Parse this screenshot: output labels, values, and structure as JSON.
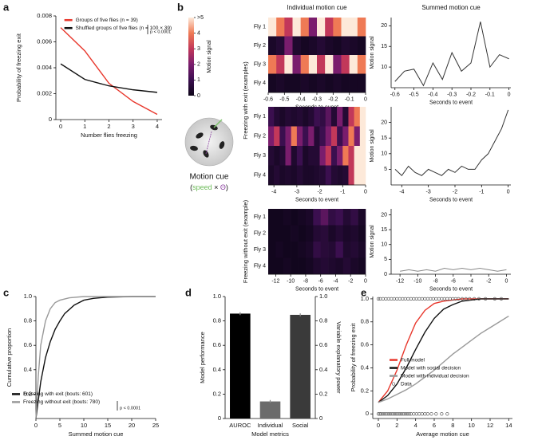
{
  "chart_data": [
    {
      "type": "line",
      "panel": "a",
      "xlabel": "Number flies freezing",
      "ylabel": "Probability of freezing exit",
      "x": [
        0,
        1,
        2,
        3,
        4
      ],
      "xlim": [
        -0.2,
        4.2
      ],
      "xticks": [
        0,
        1,
        2,
        3,
        4
      ],
      "ylim": [
        0,
        0.008
      ],
      "yticks": [
        0,
        0.002,
        0.004,
        0.006,
        0.008
      ],
      "series": [
        {
          "name": "Groups of five flies (n = 39)",
          "color": "#e8372c",
          "values": [
            0.0071,
            0.0053,
            0.0028,
            0.0014,
            0.0004
          ]
        },
        {
          "name": "Shuffled groups of five flies (n = 100 × 39)",
          "color": "#111111",
          "values": [
            0.0043,
            0.0031,
            0.0026,
            0.0023,
            0.0021
          ]
        }
      ],
      "legend": "upper right",
      "annotation": "p < 0.0001"
    },
    {
      "type": "heatmap",
      "title": "Individual motion cue",
      "xlabel": "Seconds to event",
      "xlim": [
        -0.6,
        0
      ],
      "xticks": [
        -0.6,
        -0.5,
        -0.4,
        -0.3,
        -0.2,
        -0.1,
        0
      ],
      "series": [
        {
          "name": "Fly 1",
          "values": [
            5,
            4,
            3,
            5,
            4,
            2,
            5,
            3,
            4,
            5,
            5,
            4
          ]
        },
        {
          "name": "Fly 2",
          "values": [
            0.3,
            0.5,
            2,
            0.4,
            0.2,
            0.3,
            0.5,
            0.3,
            0.2,
            0.4,
            0.3,
            0.2
          ]
        },
        {
          "name": "Fly 3",
          "values": [
            4,
            3,
            5,
            2,
            4,
            5,
            3,
            5,
            2,
            3,
            5,
            4
          ]
        },
        {
          "name": "Fly 4",
          "values": [
            0.2,
            0.3,
            0.2,
            0.2,
            0.3,
            0.2,
            0.3,
            0.2,
            0.3,
            0.2,
            0.2,
            0.2
          ]
        }
      ]
    },
    {
      "type": "line",
      "title": "Summed motion cue",
      "xlabel": "Seconds to event",
      "ylabel": "Motion signal",
      "x": [
        -0.6,
        -0.55,
        -0.5,
        -0.45,
        -0.4,
        -0.35,
        -0.3,
        -0.25,
        -0.2,
        -0.15,
        -0.1,
        -0.05,
        0
      ],
      "xlim": [
        -0.62,
        0.01
      ],
      "xticks": [
        -0.6,
        -0.5,
        -0.4,
        -0.3,
        -0.2,
        -0.1,
        0
      ],
      "ylim": [
        5,
        22
      ],
      "yticks": [
        10,
        15,
        20
      ],
      "series": [
        {
          "color": "#333333",
          "values": [
            6.5,
            9,
            9.5,
            5.5,
            11,
            7,
            13.5,
            9,
            11,
            21,
            10,
            13,
            12
          ]
        }
      ]
    },
    {
      "type": "heatmap",
      "xlabel": "Seconds to event",
      "xlim": [
        -4.25,
        0
      ],
      "xticks": [
        -4,
        -3,
        -2,
        -1,
        0
      ],
      "series": [
        {
          "name": "Fly 1",
          "values": [
            1,
            0.5,
            0.3,
            0.5,
            0.4,
            0.5,
            0.3,
            0.5,
            1,
            0.8,
            1.5,
            0.5,
            2,
            0.5,
            3,
            4,
            5
          ]
        },
        {
          "name": "Fly 2",
          "values": [
            2,
            3,
            1,
            2,
            4,
            2,
            1,
            2,
            0.5,
            1,
            2,
            3,
            1,
            2,
            4,
            2,
            5
          ]
        },
        {
          "name": "Fly 3",
          "values": [
            0.5,
            0.3,
            0.5,
            2,
            0.4,
            1,
            0.3,
            0.5,
            0.5,
            2,
            3,
            1,
            2,
            4,
            3,
            5,
            5
          ]
        },
        {
          "name": "Fly 4",
          "values": [
            0.3,
            0.5,
            0.3,
            0.4,
            0.3,
            0.5,
            0.3,
            0.3,
            0.4,
            0.5,
            1,
            0.5,
            0.4,
            0.5,
            3,
            5,
            5
          ]
        }
      ]
    },
    {
      "type": "line",
      "xlabel": "Seconds to event",
      "ylabel": "Motion signal",
      "x": [
        -4.25,
        -4,
        -3.75,
        -3.5,
        -3.25,
        -3,
        -2.75,
        -2.5,
        -2.25,
        -2,
        -1.75,
        -1.5,
        -1.25,
        -1,
        -0.75,
        -0.5,
        -0.25,
        0
      ],
      "xlim": [
        -4.4,
        0.1
      ],
      "xticks": [
        -4,
        -3,
        -2,
        -1,
        0
      ],
      "ylim": [
        0,
        25
      ],
      "yticks": [
        5,
        10,
        15,
        20
      ],
      "series": [
        {
          "color": "#333333",
          "values": [
            5,
            3,
            6,
            4,
            3,
            5,
            4,
            3,
            5,
            4,
            6,
            5,
            5,
            8,
            10,
            14,
            18,
            24
          ]
        }
      ]
    },
    {
      "type": "heatmap",
      "xlabel": "Seconds to event",
      "xlim": [
        -13,
        0
      ],
      "xticks": [
        -12,
        -10,
        -8,
        -6,
        -4,
        -2,
        0
      ],
      "series": [
        {
          "name": "Fly 1",
          "values": [
            0.1,
            0.1,
            0.2,
            0.1,
            0.2,
            0.3,
            1,
            1.5,
            0.8,
            1,
            0.5,
            0.8,
            0.3
          ]
        },
        {
          "name": "Fly 2",
          "values": [
            0.1,
            0.1,
            0.1,
            0.2,
            0.1,
            0.2,
            0.5,
            0.6,
            0.3,
            0.5,
            0.3,
            0.4,
            0.2
          ]
        },
        {
          "name": "Fly 3",
          "values": [
            0.1,
            0.2,
            0.1,
            0.1,
            0.2,
            0.3,
            0.8,
            0.6,
            0.5,
            1,
            0.4,
            0.5,
            0.3
          ]
        },
        {
          "name": "Fly 4",
          "values": [
            0.1,
            0.1,
            0.2,
            0.1,
            0.1,
            0.2,
            0.4,
            0.5,
            0.4,
            0.3,
            0.5,
            0.3,
            0.2
          ]
        }
      ]
    },
    {
      "type": "line",
      "xlabel": "Seconds to event",
      "ylabel": "Motion signal",
      "x": [
        -12,
        -11,
        -10,
        -9,
        -8,
        -7,
        -6,
        -5,
        -4,
        -3,
        -2,
        -1,
        0
      ],
      "xlim": [
        -13,
        0.5
      ],
      "xticks": [
        -12,
        -10,
        -8,
        -6,
        -4,
        -2,
        0
      ],
      "ylim": [
        0,
        22
      ],
      "yticks": [
        0,
        5,
        10,
        15,
        20
      ],
      "series": [
        {
          "color": "#888888",
          "values": [
            1,
            1.5,
            1,
            1.5,
            1,
            2,
            1.5,
            2,
            1.5,
            2,
            1.5,
            1,
            1.5
          ]
        }
      ]
    },
    {
      "type": "line",
      "panel": "c",
      "xlabel": "Summed motion cue",
      "ylabel": "Cumulative proportion",
      "xlim": [
        0,
        25
      ],
      "xticks": [
        0,
        5,
        10,
        15,
        20,
        25
      ],
      "ylim": [
        0,
        1
      ],
      "yticks": [
        0.2,
        0.4,
        0.6,
        0.8,
        {
          "value": 1,
          "label": "1.0"
        }
      ],
      "series": [
        {
          "name": "Freezing with exit (bouts: 601)",
          "color": "#111111",
          "x": [
            0,
            1,
            2,
            3,
            4,
            5,
            6,
            8,
            10,
            12,
            15,
            20,
            25
          ],
          "values": [
            0,
            0.3,
            0.5,
            0.63,
            0.73,
            0.8,
            0.86,
            0.93,
            0.97,
            0.985,
            0.995,
            1,
            1
          ]
        },
        {
          "name": "Freezing without exit (bouts: 780)",
          "color": "#9a9a9a",
          "x": [
            0,
            0.5,
            1,
            2,
            3,
            4,
            5,
            7,
            10,
            25
          ],
          "values": [
            0,
            0.35,
            0.6,
            0.8,
            0.9,
            0.95,
            0.97,
            0.99,
            1,
            1
          ]
        }
      ],
      "legend": "lower left",
      "annotation": "p < 0.0001"
    },
    {
      "type": "bar",
      "panel": "d",
      "xlabel": "Model metrics",
      "ylabel": "Model performance",
      "y2label": "Variable explanatory power",
      "categories": [
        "AUROC",
        "Individual",
        "Social"
      ],
      "values": [
        0.86,
        0.14,
        0.85
      ],
      "errors": [
        0.012,
        0.012,
        0.012
      ],
      "colors": [
        "#000000",
        "#6b6b6b",
        "#3a3a3a"
      ],
      "ylim": [
        0,
        1
      ],
      "yticks": [
        0,
        0.2,
        0.4,
        0.6,
        0.8,
        {
          "value": 1,
          "label": "1.0"
        }
      ],
      "y2lim": [
        0,
        1
      ],
      "y2ticks": [
        0,
        0.2,
        0.4,
        0.6,
        0.8,
        {
          "value": 1,
          "label": "1.0"
        }
      ]
    },
    {
      "type": "line",
      "panel": "e",
      "xlabel": "Average motion cue",
      "ylabel": "Probability of freezing exit",
      "xlim": [
        -0.6,
        14.4
      ],
      "xticks": [
        0,
        2,
        4,
        6,
        8,
        10,
        12,
        14
      ],
      "ylim": [
        -0.04,
        1.02
      ],
      "yticks": [
        0,
        0.2,
        0.4,
        0.6,
        0.8,
        {
          "value": 1,
          "label": "1.0"
        }
      ],
      "series": [
        {
          "name": "Full model",
          "color": "#e8372c",
          "x": [
            0,
            1,
            2,
            3,
            4,
            5,
            6,
            7,
            8,
            9,
            10,
            11,
            12,
            13,
            14
          ],
          "values": [
            0.1,
            0.2,
            0.38,
            0.6,
            0.79,
            0.9,
            0.96,
            0.98,
            0.99,
            1,
            1,
            1,
            1,
            1,
            1
          ]
        },
        {
          "name": "Model with social decision",
          "color": "#111111",
          "x": [
            0,
            1,
            2,
            3,
            4,
            5,
            6,
            7,
            8,
            9,
            10,
            11,
            12,
            13,
            14
          ],
          "values": [
            0.1,
            0.16,
            0.26,
            0.4,
            0.56,
            0.71,
            0.83,
            0.91,
            0.95,
            0.98,
            0.99,
            1,
            1,
            1,
            1
          ]
        },
        {
          "name": "Model with individual decision",
          "color": "#999999",
          "x": [
            0,
            1,
            2,
            3,
            4,
            5,
            6,
            7,
            8,
            9,
            10,
            11,
            12,
            13,
            14
          ],
          "values": [
            0.1,
            0.13,
            0.17,
            0.21,
            0.26,
            0.32,
            0.38,
            0.45,
            0.52,
            0.58,
            0.64,
            0.7,
            0.75,
            0.8,
            0.85
          ]
        },
        {
          "name": "Data",
          "type": "scatter",
          "color": "#444444",
          "x": [
            0,
            0.2,
            0.5,
            0.8,
            1.1,
            1.4,
            1.7,
            2,
            2.3,
            2.6,
            2.9,
            3.2,
            3.5,
            3.8,
            4.1,
            4.4,
            4.7,
            5,
            5.3,
            5.6,
            5.9,
            6.2,
            6.5,
            6.8,
            7.1,
            7.4,
            7.7,
            8,
            8.3,
            8.6,
            9,
            9.4,
            9.8,
            10.3,
            10.8,
            11.5,
            12.5,
            13.2,
            0,
            0.15,
            0.3,
            0.5,
            0.7,
            0.9,
            1.1,
            1.3,
            1.5,
            1.7,
            1.9,
            2.1,
            2.3,
            2.5,
            2.7,
            2.9,
            3.1,
            3.3,
            3.5,
            3.8,
            4.1,
            4.4,
            4.7,
            5,
            5.3,
            5.7,
            6.2,
            6.8,
            7.4
          ],
          "values": [
            1,
            1,
            1,
            1,
            1,
            1,
            1,
            1,
            1,
            1,
            1,
            1,
            1,
            1,
            1,
            1,
            1,
            1,
            1,
            1,
            1,
            1,
            1,
            1,
            1,
            1,
            1,
            1,
            1,
            1,
            1,
            1,
            1,
            1,
            1,
            1,
            1,
            1,
            0,
            0,
            0,
            0,
            0,
            0,
            0,
            0,
            0,
            0,
            0,
            0,
            0,
            0,
            0,
            0,
            0,
            0,
            0,
            0,
            0,
            0,
            0,
            0,
            0,
            0,
            0,
            0,
            0
          ]
        }
      ],
      "legend": "center right"
    }
  ],
  "figure_b": {
    "panel": "b",
    "colorbar": {
      "label": "Motion signal",
      "clim": [
        0,
        5
      ],
      "ticks": [
        0,
        1,
        2,
        3,
        4,
        {
          "value": 5,
          "label": ">5"
        }
      ],
      "colors": [
        "#0d0518",
        "#3b0f4f",
        "#7a1d6d",
        "#c2385a",
        "#ef7a55",
        "#fde9d9"
      ]
    },
    "group_labels": [
      "Freezing with exit (examples)",
      "Freezing without exit (example)"
    ],
    "diagram": {
      "label": "Motion cue",
      "open": "(",
      "speed": "speed",
      "times": " × ",
      "theta": "Θ",
      "close": ")"
    }
  }
}
